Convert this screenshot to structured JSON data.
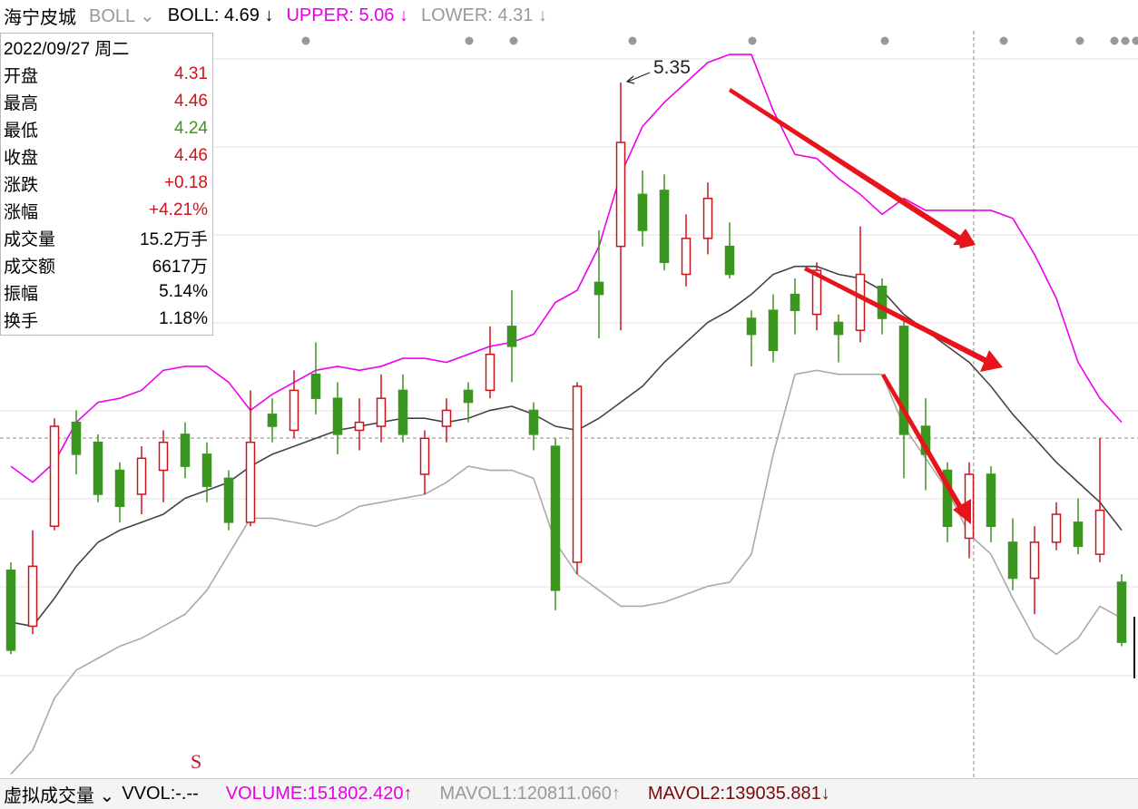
{
  "header": {
    "stock": "海宁皮城",
    "indicator": "BOLL",
    "boll": "BOLL: 4.69",
    "boll_arrow": "↓",
    "upper": "UPPER: 5.06",
    "upper_arrow": "↓",
    "lower": "LOWER: 4.31",
    "lower_arrow": "↓"
  },
  "info_panel": {
    "date": "2022/09/27 周二",
    "rows": [
      [
        "开盘",
        "4.31"
      ],
      [
        "最高",
        "4.46"
      ],
      [
        "最低",
        "4.24"
      ],
      [
        "收盘",
        "4.46"
      ],
      [
        "涨跌",
        "+0.18"
      ],
      [
        "涨幅",
        "+4.21%"
      ],
      [
        "成交量",
        "15.2万手"
      ],
      [
        "成交额",
        "6617万"
      ],
      [
        "振幅",
        "5.14%"
      ],
      [
        "换手",
        "1.18%"
      ]
    ]
  },
  "footer": {
    "indicator": "虚拟成交量",
    "vvol": "VVOL:-.--",
    "volume": "VOLUME:151802.420↑",
    "mavol1": "MAVOL1:120811.060↑",
    "mavol2": "MAVOL2:139035.881↓"
  },
  "chart_data": {
    "type": "candlestick",
    "ylim": [
      3.61,
      5.47
    ],
    "up_color": "#d0121b",
    "down_color": "#3a961e",
    "peak_label": "5.35",
    "signal_marker": "S",
    "candles": {
      "open": [
        4.13,
        3.99,
        4.24,
        4.5,
        4.45,
        4.38,
        4.32,
        4.38,
        4.47,
        4.42,
        4.36,
        4.25,
        4.52,
        4.48,
        4.62,
        4.56,
        4.48,
        4.49,
        4.58,
        4.37,
        4.49,
        4.58,
        4.58,
        4.74,
        4.53,
        4.44,
        4.15,
        4.85,
        4.94,
        5.07,
        5.08,
        4.87,
        4.96,
        4.94,
        4.76,
        4.78,
        4.82,
        4.77,
        4.75,
        4.73,
        4.84,
        4.74,
        4.49,
        4.38,
        4.21,
        4.37,
        4.2,
        4.11,
        4.2,
        4.25,
        4.17,
        4.1
      ],
      "high": [
        4.15,
        4.23,
        4.51,
        4.53,
        4.47,
        4.4,
        4.44,
        4.48,
        4.5,
        4.45,
        4.38,
        4.58,
        4.56,
        4.63,
        4.7,
        4.6,
        4.56,
        4.62,
        4.62,
        4.48,
        4.56,
        4.6,
        4.74,
        4.83,
        4.55,
        4.46,
        4.6,
        4.98,
        5.35,
        5.13,
        5.12,
        5.02,
        5.1,
        5.0,
        4.78,
        4.82,
        4.86,
        4.9,
        4.77,
        4.99,
        4.86,
        4.76,
        4.56,
        4.4,
        4.4,
        4.39,
        4.26,
        4.24,
        4.3,
        4.31,
        4.46,
        4.12
      ],
      "low": [
        3.92,
        3.97,
        4.23,
        4.37,
        4.3,
        4.25,
        4.27,
        4.3,
        4.36,
        4.3,
        4.23,
        4.24,
        4.45,
        4.46,
        4.52,
        4.42,
        4.43,
        4.45,
        4.45,
        4.32,
        4.45,
        4.5,
        4.56,
        4.6,
        4.43,
        4.03,
        4.12,
        4.71,
        4.73,
        4.94,
        4.88,
        4.84,
        4.92,
        4.86,
        4.64,
        4.65,
        4.72,
        4.73,
        4.65,
        4.7,
        4.72,
        4.36,
        4.33,
        4.2,
        4.16,
        4.2,
        4.08,
        4.02,
        4.18,
        4.17,
        4.15,
        3.94
      ],
      "close": [
        3.93,
        4.14,
        4.49,
        4.42,
        4.32,
        4.29,
        4.41,
        4.45,
        4.39,
        4.34,
        4.25,
        4.45,
        4.49,
        4.58,
        4.56,
        4.47,
        4.5,
        4.56,
        4.47,
        4.46,
        4.53,
        4.55,
        4.67,
        4.69,
        4.47,
        4.08,
        4.59,
        4.82,
        5.2,
        4.98,
        4.9,
        4.96,
        5.06,
        4.87,
        4.72,
        4.68,
        4.78,
        4.88,
        4.72,
        4.87,
        4.76,
        4.47,
        4.42,
        4.24,
        4.37,
        4.24,
        4.11,
        4.2,
        4.27,
        4.19,
        4.28,
        3.95
      ]
    },
    "boll": {
      "upper_color": "#ee00ee",
      "mid_color": "#444444",
      "lower_color": "#aaaaaa",
      "upper": [
        4.39,
        4.35,
        4.4,
        4.5,
        4.55,
        4.56,
        4.58,
        4.63,
        4.64,
        4.64,
        4.6,
        4.53,
        4.57,
        4.6,
        4.63,
        4.64,
        4.63,
        4.64,
        4.66,
        4.66,
        4.65,
        4.67,
        4.69,
        4.7,
        4.72,
        4.8,
        4.83,
        4.94,
        5.12,
        5.24,
        5.3,
        5.35,
        5.4,
        5.42,
        5.42,
        5.28,
        5.17,
        5.16,
        5.11,
        5.07,
        5.02,
        5.06,
        5.03,
        5.03,
        5.03,
        5.03,
        5.01,
        4.92,
        4.81,
        4.65,
        4.56,
        4.5
      ],
      "mid": [
        4.0,
        3.99,
        4.06,
        4.14,
        4.2,
        4.23,
        4.25,
        4.27,
        4.31,
        4.33,
        4.35,
        4.39,
        4.42,
        4.44,
        4.46,
        4.48,
        4.49,
        4.5,
        4.51,
        4.51,
        4.5,
        4.51,
        4.53,
        4.54,
        4.52,
        4.49,
        4.48,
        4.51,
        4.55,
        4.59,
        4.65,
        4.7,
        4.75,
        4.78,
        4.82,
        4.87,
        4.89,
        4.89,
        4.87,
        4.86,
        4.83,
        4.77,
        4.73,
        4.69,
        4.65,
        4.59,
        4.52,
        4.46,
        4.4,
        4.35,
        4.3,
        4.23
      ],
      "lower": [
        3.62,
        3.68,
        3.81,
        3.88,
        3.91,
        3.94,
        3.96,
        3.99,
        4.02,
        4.08,
        4.17,
        4.26,
        4.26,
        4.25,
        4.24,
        4.26,
        4.29,
        4.3,
        4.31,
        4.32,
        4.35,
        4.39,
        4.38,
        4.38,
        4.36,
        4.2,
        4.12,
        4.08,
        4.04,
        4.04,
        4.05,
        4.07,
        4.09,
        4.1,
        4.17,
        4.42,
        4.62,
        4.63,
        4.62,
        4.62,
        4.62,
        4.49,
        4.41,
        4.33,
        4.22,
        4.17,
        4.06,
        3.96,
        3.92,
        3.96,
        4.04,
        4.01
      ]
    }
  }
}
